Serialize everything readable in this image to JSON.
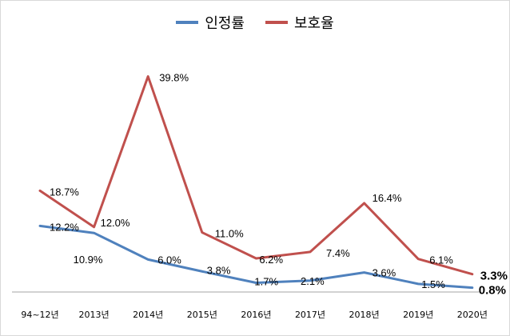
{
  "chart_data": {
    "type": "line",
    "categories": [
      "94~12년",
      "2013년",
      "2014년",
      "2015년",
      "2016년",
      "2017년",
      "2018년",
      "2019년",
      "2020년"
    ],
    "series": [
      {
        "name": "인정률",
        "color": "#4f81bd",
        "values": [
          12.2,
          10.9,
          6.0,
          3.8,
          1.7,
          2.1,
          3.6,
          1.5,
          0.8
        ],
        "labels": [
          "12.2%",
          "10.9%",
          "6.0%",
          "3.8%",
          "1.7%",
          "2.1%",
          "3.6%",
          "1.5%",
          "0.8%"
        ]
      },
      {
        "name": "보호율",
        "color": "#c0504d",
        "values": [
          18.7,
          12.0,
          39.8,
          11.0,
          6.2,
          7.4,
          16.4,
          6.1,
          3.3
        ],
        "labels": [
          "18.7%",
          "12.0%",
          "39.8%",
          "11.0%",
          "6.2%",
          "7.4%",
          "16.4%",
          "6.1%",
          "3.3%"
        ]
      }
    ],
    "ylim": [
      0,
      42
    ],
    "grid": false,
    "legend": "top-center"
  }
}
